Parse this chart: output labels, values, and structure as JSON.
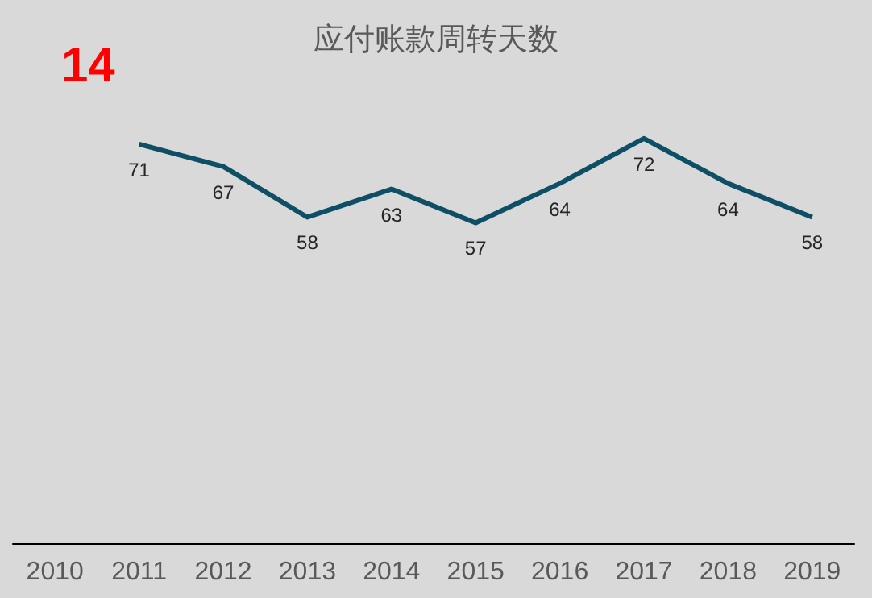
{
  "chart_data": {
    "type": "line",
    "title": "应付账款周转天数",
    "annotations": [
      "14"
    ],
    "categories": [
      "2010",
      "2011",
      "2012",
      "2013",
      "2014",
      "2015",
      "2016",
      "2017",
      "2018",
      "2019"
    ],
    "series": [
      {
        "color": "#0e4f66",
        "values": [
          null,
          71,
          67,
          58,
          63,
          57,
          64,
          72,
          64,
          58
        ]
      }
    ],
    "data_labels": true,
    "marker": "none"
  }
}
